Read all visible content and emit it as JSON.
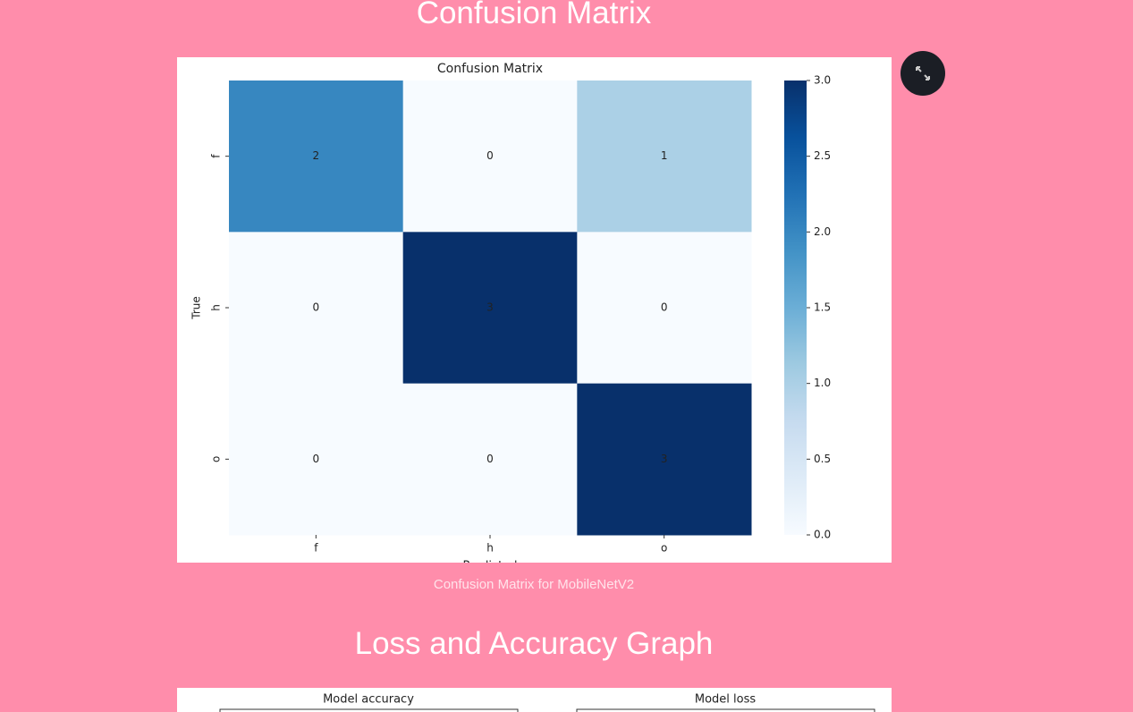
{
  "page": {
    "heading_1": "Confusion Matrix",
    "caption_1": "Confusion Matrix for MobileNetV2",
    "heading_2": "Loss and Accuracy Graph",
    "graph_titles": [
      "Model accuracy",
      "Model loss"
    ]
  },
  "chart_data": {
    "type": "heatmap",
    "title": "Confusion Matrix",
    "xlabel": "Predicted",
    "ylabel": "True",
    "x_categories": [
      "f",
      "h",
      "o"
    ],
    "y_categories": [
      "f",
      "h",
      "o"
    ],
    "values": [
      [
        2,
        0,
        1
      ],
      [
        0,
        3,
        0
      ],
      [
        0,
        0,
        3
      ]
    ],
    "colormap": "Blues",
    "clim": [
      0,
      3
    ],
    "cticks": [
      {
        "value": 0,
        "label": "0.0"
      },
      {
        "value": 0.5,
        "label": "0.5"
      },
      {
        "value": 1,
        "label": "1.0"
      },
      {
        "value": 1.5,
        "label": "1.5"
      },
      {
        "value": 2,
        "label": "2.0"
      },
      {
        "value": 2.5,
        "label": "2.5"
      },
      {
        "value": 3,
        "label": "3.0"
      }
    ]
  }
}
